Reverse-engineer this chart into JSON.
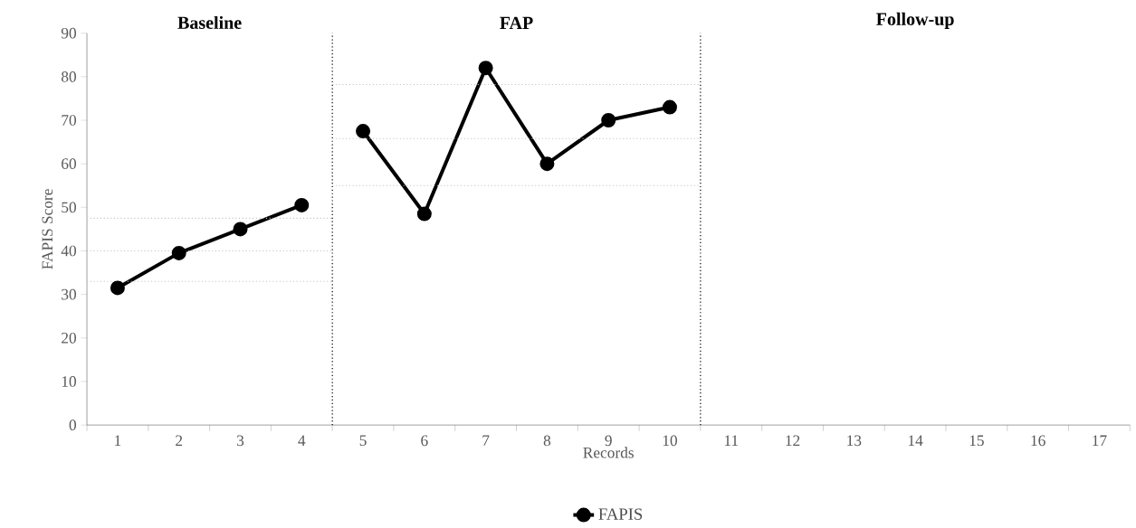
{
  "chart_data": {
    "type": "line",
    "xlabel": "Records",
    "ylabel": "FAPIS Score",
    "x": [
      1,
      2,
      3,
      4
    ],
    "xlim": [
      0.5,
      17.5
    ],
    "xticks": [
      {
        "value": 0.5,
        "label": null
      },
      1,
      {
        "value": 1.5,
        "label": null
      },
      2,
      {
        "value": 2.5,
        "label": null
      },
      3,
      {
        "value": 3.5,
        "label": null
      },
      4,
      {
        "value": 4.5,
        "label": null
      },
      5,
      {
        "value": 5.5,
        "label": null
      },
      6,
      {
        "value": 6.5,
        "label": null
      },
      7,
      {
        "value": 7.5,
        "label": null
      },
      8,
      {
        "value": 8.5,
        "label": null
      },
      9,
      {
        "value": 9.5,
        "label": null
      },
      10,
      {
        "value": 10.5,
        "label": null
      },
      11,
      {
        "value": 11.5,
        "label": null
      },
      12,
      {
        "value": 12.5,
        "label": null
      },
      13,
      {
        "value": 13.5,
        "label": null
      },
      14,
      {
        "value": 14.5,
        "label": null
      },
      15,
      {
        "value": 15.5,
        "label": null
      },
      16,
      {
        "value": 16.5,
        "label": null
      },
      17,
      {
        "value": 17.5,
        "label": null
      }
    ],
    "ylim": [
      0,
      90
    ],
    "yticks": [
      0,
      10,
      20,
      30,
      40,
      50,
      60,
      70,
      80,
      90
    ],
    "series": [
      {
        "name": "FAPIS",
        "color": "#000000",
        "marker": "circle",
        "line_style": "solid",
        "values": [
          31.5,
          39.5,
          45,
          50.5
        ]
      },
      {
        "x": [
          5,
          6,
          7,
          8,
          9,
          10
        ],
        "color": "#000000",
        "marker": "circle",
        "line_style": "solid",
        "values": [
          67.5,
          48.5,
          82,
          60,
          70,
          73
        ]
      },
      {
        "type": "line",
        "x": [
          0.5,
          4.5
        ],
        "color": "#bfbfbf",
        "marker": "none",
        "line_style": "dotted",
        "values": [
          47.5,
          47.5
        ]
      },
      {
        "type": "line",
        "x": [
          0.5,
          4.5
        ],
        "color": "#bfbfbf",
        "marker": "none",
        "line_style": "dotted",
        "values": [
          40,
          40
        ]
      },
      {
        "type": "line",
        "x": [
          0.5,
          4.5
        ],
        "color": "#bfbfbf",
        "marker": "none",
        "line_style": "dotted",
        "values": [
          33,
          33
        ]
      },
      {
        "type": "line",
        "x": [
          4.5,
          10.5
        ],
        "color": "#bfbfbf",
        "marker": "none",
        "line_style": "dotted",
        "values": [
          78.2,
          78.2
        ]
      },
      {
        "type": "line",
        "x": [
          4.5,
          10.5
        ],
        "color": "#bfbfbf",
        "marker": "none",
        "line_style": "dotted",
        "values": [
          65.8,
          65.8
        ]
      },
      {
        "type": "line",
        "x": [
          4.5,
          10.5
        ],
        "color": "#bfbfbf",
        "marker": "none",
        "line_style": "dotted",
        "values": [
          55,
          55
        ]
      }
    ],
    "ref_lines": [
      {
        "axis": "x",
        "value": 4.5,
        "color": "#000000",
        "line_style": "dotted"
      },
      {
        "axis": "x",
        "value": 10.5,
        "color": "#000000",
        "line_style": "dotted"
      }
    ],
    "annotations": [
      "Baseline",
      "FAP",
      "Follow-up"
    ],
    "legend": "bottom",
    "grid": false
  }
}
